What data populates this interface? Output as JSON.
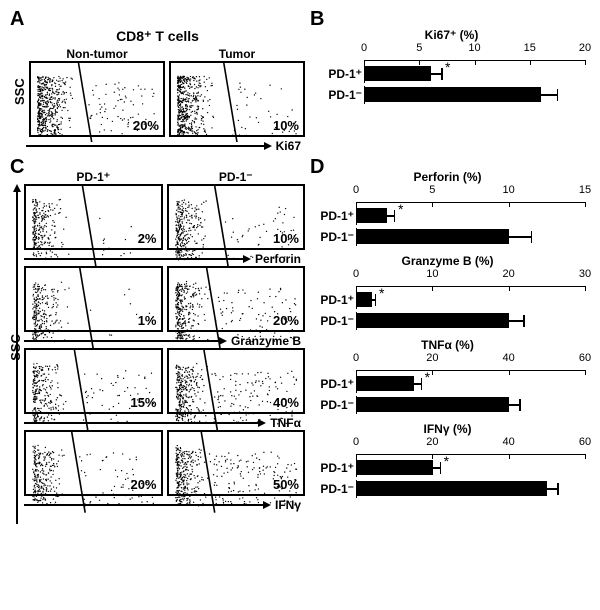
{
  "panels": {
    "A": "A",
    "B": "B",
    "C": "C",
    "D": "D"
  },
  "panelA": {
    "header": "CD8⁺ T cells",
    "yaxis": "SSC",
    "xaxis": "Ki67",
    "plots": [
      {
        "title": "Non-tumor",
        "value": "20%",
        "gate_pos_pct": 42,
        "cluster_left_density": 0.95,
        "spread_right": 0.3
      },
      {
        "title": "Tumor",
        "value": "10%",
        "gate_pos_pct": 46,
        "cluster_left_density": 0.92,
        "spread_right": 0.15
      }
    ]
  },
  "panelB": {
    "title": "Ki67⁺ (%)",
    "xmax": 20,
    "ticks": [
      0,
      5,
      10,
      15,
      20
    ],
    "bars": [
      {
        "label": "PD-1⁺",
        "value": 6,
        "err": 1.0,
        "sig": "*"
      },
      {
        "label": "PD-1⁻",
        "value": 16,
        "err": 1.5,
        "sig": ""
      }
    ]
  },
  "panelC": {
    "yaxis": "SSC",
    "col_titles": [
      "PD-1⁺",
      "PD-1⁻"
    ],
    "rows": [
      {
        "xaxis": "Perforin",
        "left": {
          "value": "2%",
          "gate": 48,
          "dense": 0.05
        },
        "right": {
          "value": "10%",
          "gate": 40,
          "dense": 0.18
        }
      },
      {
        "xaxis": "Granzyme B",
        "left": {
          "value": "1%",
          "gate": 46,
          "dense": 0.04
        },
        "right": {
          "value": "20%",
          "gate": 34,
          "dense": 0.35
        }
      },
      {
        "xaxis": "TNFα",
        "left": {
          "value": "15%",
          "gate": 42,
          "dense": 0.2
        },
        "right": {
          "value": "40%",
          "gate": 32,
          "dense": 0.5
        }
      },
      {
        "xaxis": "IFNγ",
        "left": {
          "value": "20%",
          "gate": 40,
          "dense": 0.25
        },
        "right": {
          "value": "50%",
          "gate": 30,
          "dense": 0.6
        }
      }
    ]
  },
  "panelD": {
    "charts": [
      {
        "title": "Perforin (%)",
        "xmax": 15,
        "ticks": [
          0,
          5,
          10,
          15
        ],
        "bars": [
          {
            "label": "PD-1⁺",
            "value": 2,
            "err": 0.5,
            "sig": "*"
          },
          {
            "label": "PD-1⁻",
            "value": 10,
            "err": 1.5,
            "sig": ""
          }
        ]
      },
      {
        "title": "Granzyme B (%)",
        "xmax": 30,
        "ticks": [
          0,
          10,
          20,
          30
        ],
        "bars": [
          {
            "label": "PD-1⁺",
            "value": 2,
            "err": 0.5,
            "sig": "*"
          },
          {
            "label": "PD-1⁻",
            "value": 20,
            "err": 2,
            "sig": ""
          }
        ]
      },
      {
        "title": "TNFα (%)",
        "xmax": 60,
        "ticks": [
          0,
          20,
          40,
          60
        ],
        "bars": [
          {
            "label": "PD-1⁺",
            "value": 15,
            "err": 2,
            "sig": "*"
          },
          {
            "label": "PD-1⁻",
            "value": 40,
            "err": 3,
            "sig": ""
          }
        ]
      },
      {
        "title": "IFNγ (%)",
        "xmax": 60,
        "ticks": [
          0,
          20,
          40,
          60
        ],
        "bars": [
          {
            "label": "PD-1⁺",
            "value": 20,
            "err": 2,
            "sig": "*"
          },
          {
            "label": "PD-1⁻",
            "value": 50,
            "err": 3,
            "sig": ""
          }
        ]
      }
    ]
  },
  "colors": {
    "bar": "#000000",
    "border": "#000000",
    "bg": "#ffffff"
  }
}
